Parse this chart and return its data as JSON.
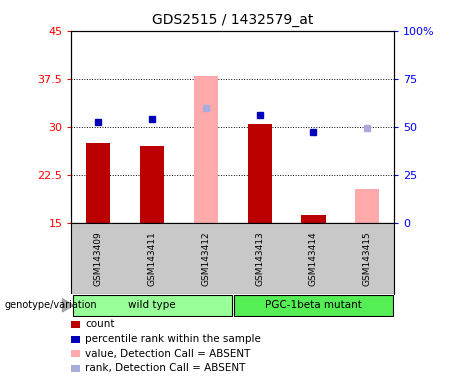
{
  "title": "GDS2515 / 1432579_at",
  "samples": [
    "GSM143409",
    "GSM143411",
    "GSM143412",
    "GSM143413",
    "GSM143414",
    "GSM143415"
  ],
  "groups": {
    "wild type": {
      "indices": [
        0,
        1,
        2
      ],
      "color": "#99ff99"
    },
    "PGC-1beta mutant": {
      "indices": [
        3,
        4,
        5
      ],
      "color": "#55ee55"
    }
  },
  "count_values": [
    27.5,
    27.0,
    null,
    30.5,
    16.2,
    null
  ],
  "percentile_rank": [
    30.8,
    31.2,
    null,
    31.8,
    29.2,
    null
  ],
  "absent_value": [
    null,
    null,
    38.0,
    null,
    null,
    20.2
  ],
  "absent_rank": [
    null,
    null,
    33.0,
    null,
    null,
    29.8
  ],
  "ylim_left": [
    15,
    45
  ],
  "ylim_right": [
    0,
    100
  ],
  "yticks_left": [
    15,
    22.5,
    30,
    37.5,
    45
  ],
  "yticks_right": [
    0,
    25,
    50,
    75,
    100
  ],
  "yticklabels_left": [
    "15",
    "22.5",
    "30",
    "37.5",
    "45"
  ],
  "yticklabels_right": [
    "0",
    "25",
    "50",
    "75",
    "100%"
  ],
  "bar_color": "#bb0000",
  "bar_absent_color": "#ffaaaa",
  "dot_color": "#0000bb",
  "dot_absent_color": "#aaaadd",
  "bg_sample": "#c8c8c8",
  "legend_items": [
    {
      "label": "count",
      "color": "#bb0000",
      "type": "square"
    },
    {
      "label": "percentile rank within the sample",
      "color": "#0000bb",
      "type": "square"
    },
    {
      "label": "value, Detection Call = ABSENT",
      "color": "#ffaaaa",
      "type": "square"
    },
    {
      "label": "rank, Detection Call = ABSENT",
      "color": "#aaaadd",
      "type": "square"
    }
  ]
}
